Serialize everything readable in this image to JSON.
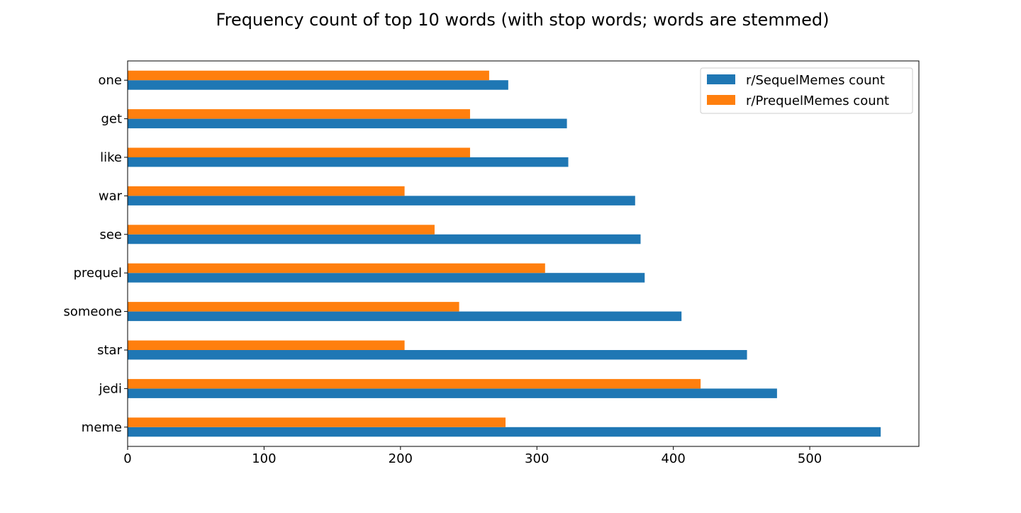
{
  "chart_data": {
    "type": "bar",
    "orientation": "horizontal",
    "title": "Frequency count of top 10 words (with stop words; words are stemmed)",
    "xlabel": "",
    "ylabel": "",
    "categories": [
      "meme",
      "jedi",
      "star",
      "someone",
      "prequel",
      "see",
      "war",
      "like",
      "get",
      "one"
    ],
    "series": [
      {
        "name": "r/SequelMemes count",
        "color": "#1f77b4",
        "values": [
          552,
          476,
          454,
          406,
          379,
          376,
          372,
          323,
          322,
          279
        ]
      },
      {
        "name": "r/PrequelMemes count",
        "color": "#ff7f0e",
        "values": [
          277,
          420,
          203,
          243,
          306,
          225,
          203,
          251,
          251,
          265
        ]
      }
    ],
    "xlim": [
      0,
      580
    ],
    "xticks": [
      0,
      100,
      200,
      300,
      400,
      500
    ],
    "grid": false,
    "legend_position": "top-right"
  }
}
